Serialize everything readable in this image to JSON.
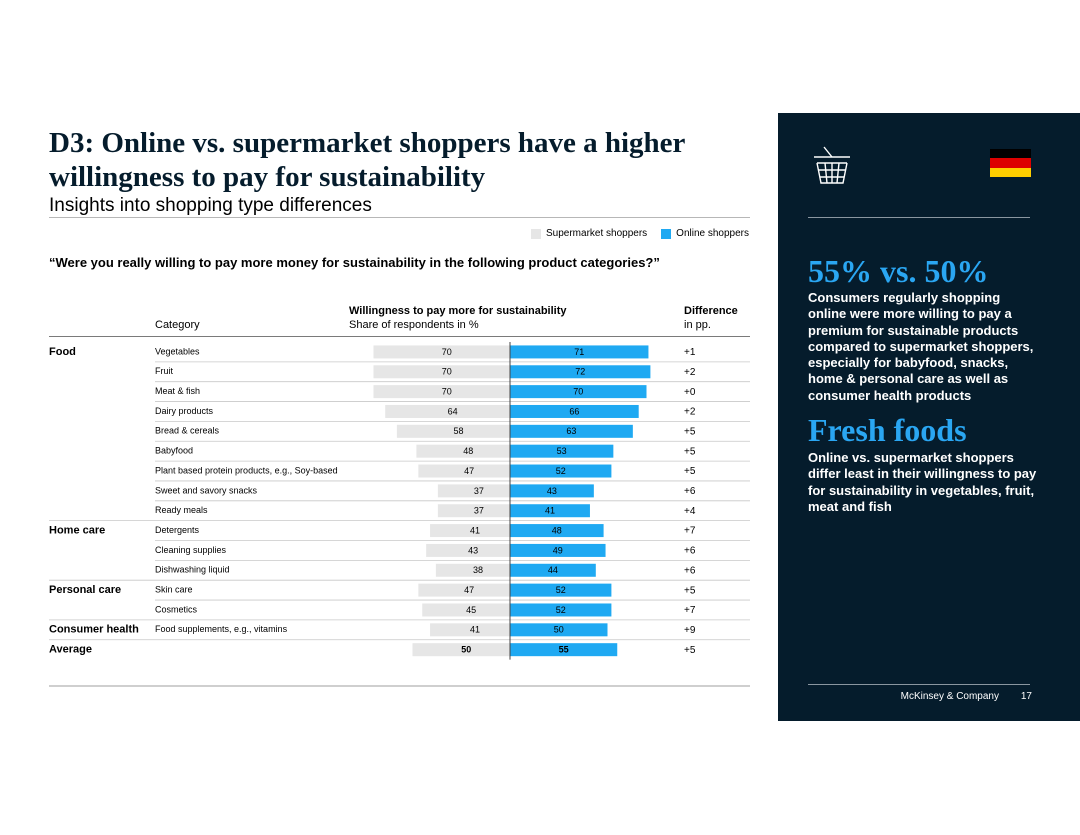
{
  "header": {
    "title": "D3: Online vs. supermarket shoppers have a higher willingness to pay for sustainability",
    "subtitle": "Insights into shopping type differences"
  },
  "legend": {
    "supermarket": "Supermarket shoppers",
    "online": "Online shoppers"
  },
  "question": "“Were you really willing to pay more money for sustainability in the following product categories?”",
  "columns": {
    "category": "Category",
    "willingness_title": "Willingness to pay more for sustainability",
    "willingness_sub": "Share of respondents in %",
    "difference_title": "Difference",
    "difference_sub": "in pp."
  },
  "colors": {
    "supermarket": "#e6e6e6",
    "online": "#1fa9f2",
    "navy": "#051c2c",
    "accent": "#2aa6f2"
  },
  "chart_data": {
    "type": "bar",
    "orientation": "horizontal-diverging",
    "series": [
      {
        "name": "Supermarket shoppers",
        "values": [
          70,
          70,
          70,
          64,
          58,
          48,
          47,
          37,
          37,
          41,
          43,
          38,
          47,
          45,
          41,
          50
        ]
      },
      {
        "name": "Online shoppers",
        "values": [
          71,
          72,
          70,
          66,
          63,
          53,
          52,
          43,
          41,
          48,
          49,
          44,
          52,
          52,
          50,
          55
        ]
      }
    ],
    "rows": [
      {
        "group": "Food",
        "category": "Vegetables",
        "supermarket": 70,
        "online": 71,
        "difference": "+1"
      },
      {
        "group": "",
        "category": "Fruit",
        "supermarket": 70,
        "online": 72,
        "difference": "+2"
      },
      {
        "group": "",
        "category": "Meat & fish",
        "supermarket": 70,
        "online": 70,
        "difference": "+0"
      },
      {
        "group": "",
        "category": "Dairy products",
        "supermarket": 64,
        "online": 66,
        "difference": "+2"
      },
      {
        "group": "",
        "category": "Bread & cereals",
        "supermarket": 58,
        "online": 63,
        "difference": "+5"
      },
      {
        "group": "",
        "category": "Babyfood",
        "supermarket": 48,
        "online": 53,
        "difference": "+5"
      },
      {
        "group": "",
        "category": "Plant based protein products, e.g., Soy-based",
        "supermarket": 47,
        "online": 52,
        "difference": "+5"
      },
      {
        "group": "",
        "category": "Sweet and savory snacks",
        "supermarket": 37,
        "online": 43,
        "difference": "+6"
      },
      {
        "group": "",
        "category": "Ready meals",
        "supermarket": 37,
        "online": 41,
        "difference": "+4"
      },
      {
        "group": "Home care",
        "category": "Detergents",
        "supermarket": 41,
        "online": 48,
        "difference": "+7"
      },
      {
        "group": "",
        "category": "Cleaning supplies",
        "supermarket": 43,
        "online": 49,
        "difference": "+6"
      },
      {
        "group": "",
        "category": "Dishwashing liquid",
        "supermarket": 38,
        "online": 44,
        "difference": "+6"
      },
      {
        "group": "Personal care",
        "category": "Skin care",
        "supermarket": 47,
        "online": 52,
        "difference": "+5"
      },
      {
        "group": "",
        "category": "Cosmetics",
        "supermarket": 45,
        "online": 52,
        "difference": "+7"
      },
      {
        "group": "Consumer health",
        "category": "Food supplements, e.g., vitamins",
        "supermarket": 41,
        "online": 50,
        "difference": "+9"
      },
      {
        "group": "Average",
        "category": "",
        "supermarket": 50,
        "online": 55,
        "difference": "+5",
        "bold": true
      }
    ]
  },
  "panel": {
    "stat1": "55% vs. 50%",
    "text1": "Consumers regularly shopping online were more willing to pay a premium for sustainable products compared to supermarket shoppers, especially for babyfood, snacks, home & personal care as well as consumer health products",
    "stat2": "Fresh foods",
    "text2": "Online vs. supermarket shoppers differ least in their willingness to pay for sustainability in vegetables, fruit, meat and fish",
    "footer": "McKinsey & Company",
    "page": "17",
    "basket_icon": "shopping-basket-icon",
    "flag_icon": "germany-flag-icon"
  }
}
